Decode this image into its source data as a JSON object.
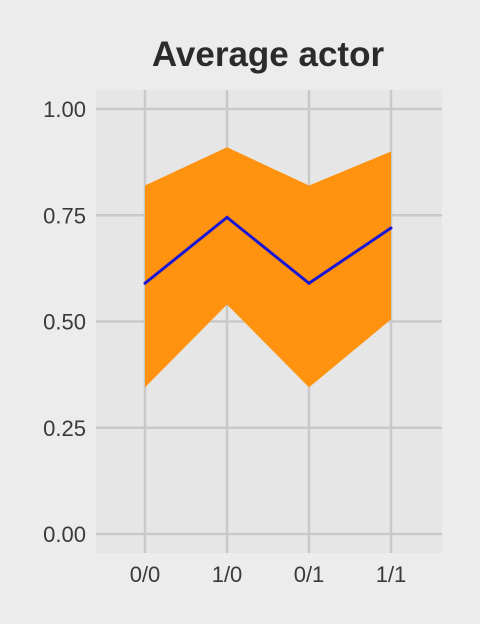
{
  "chart_data": {
    "type": "area",
    "title": "Average actor",
    "xlabel": "",
    "ylabel": "",
    "categories": [
      "0/0",
      "1/0",
      "0/1",
      "1/1"
    ],
    "ylim": [
      0,
      1
    ],
    "yticks": [
      "0.00",
      "0.25",
      "0.50",
      "0.75",
      "1.00"
    ],
    "yticks_values": [
      0,
      0.25,
      0.5,
      0.75,
      1.0
    ],
    "grid": true,
    "legend": "none",
    "band": {
      "lower": [
        0.345,
        0.54,
        0.345,
        0.505
      ],
      "upper": [
        0.82,
        0.91,
        0.82,
        0.9
      ]
    },
    "series": [
      {
        "values": [
          0.59,
          0.745,
          0.59,
          0.72
        ]
      }
    ],
    "colors": {
      "background": "#ececec",
      "panel": "#e6e6e6",
      "grid": "#c9c9c9",
      "band": "#ff930f",
      "line": "#1a16d6"
    }
  }
}
